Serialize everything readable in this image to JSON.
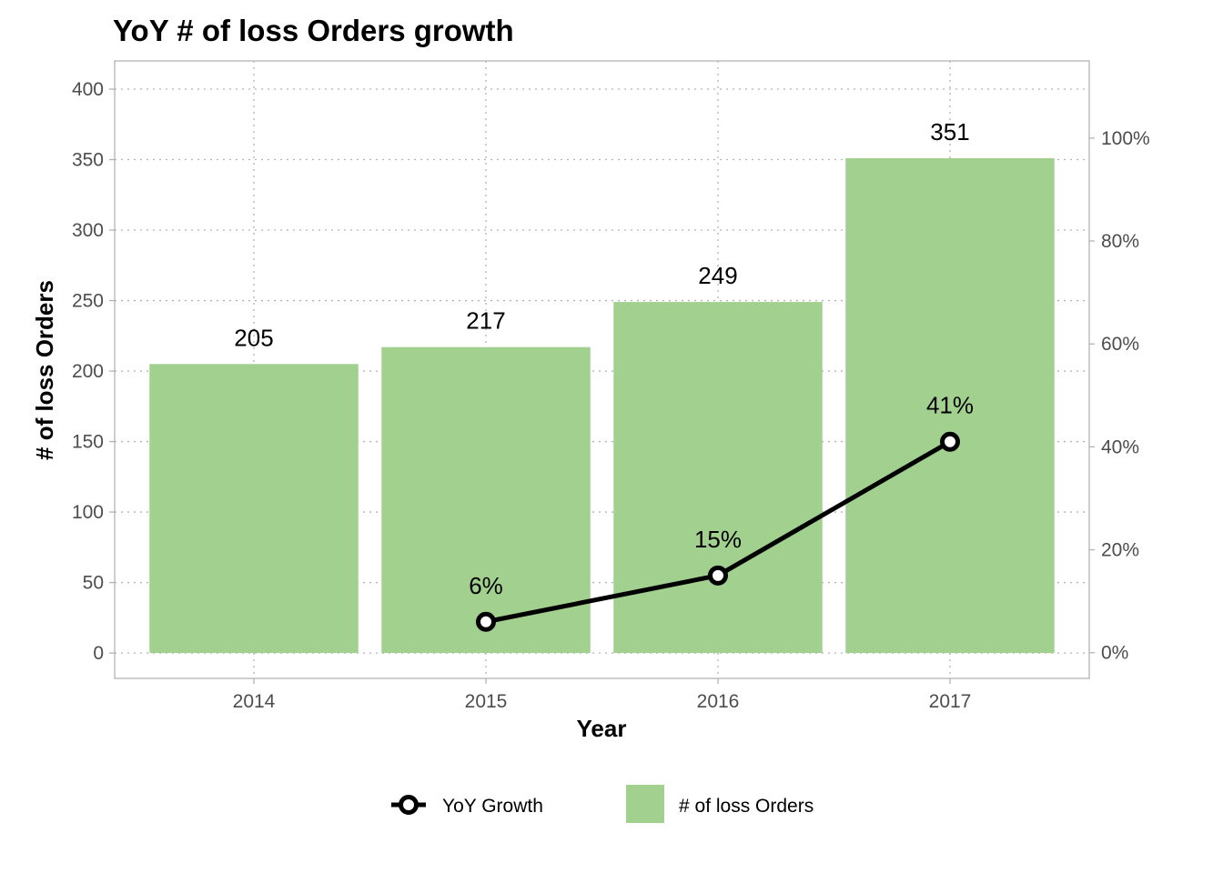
{
  "chart_data": {
    "type": "bar",
    "title": "YoY # of loss Orders growth",
    "xlabel": "Year",
    "ylabel": "# of loss Orders",
    "categories": [
      "2014",
      "2015",
      "2016",
      "2017"
    ],
    "ylim": [
      -18,
      420
    ],
    "yticks": [
      0,
      50,
      100,
      150,
      200,
      250,
      300,
      350,
      400
    ],
    "y2lim": [
      -0.05,
      1.15
    ],
    "y2ticks": [
      0,
      0.2,
      0.4,
      0.6,
      0.8,
      1.0
    ],
    "y2tick_labels": [
      "0%",
      "20%",
      "40%",
      "60%",
      "80%",
      "100%"
    ],
    "grid": true,
    "legend_position": "bottom",
    "series": [
      {
        "name": "# of loss Orders",
        "type": "bar",
        "axis": "left",
        "values": [
          205,
          217,
          249,
          351
        ],
        "labels": [
          "205",
          "217",
          "249",
          "351"
        ],
        "color": "#a1d08f"
      },
      {
        "name": "YoY Growth",
        "type": "line",
        "axis": "right",
        "x": [
          "2015",
          "2016",
          "2017"
        ],
        "values": [
          0.06,
          0.15,
          0.41
        ],
        "labels": [
          "6%",
          "15%",
          "41%"
        ],
        "color": "#000000"
      }
    ]
  }
}
